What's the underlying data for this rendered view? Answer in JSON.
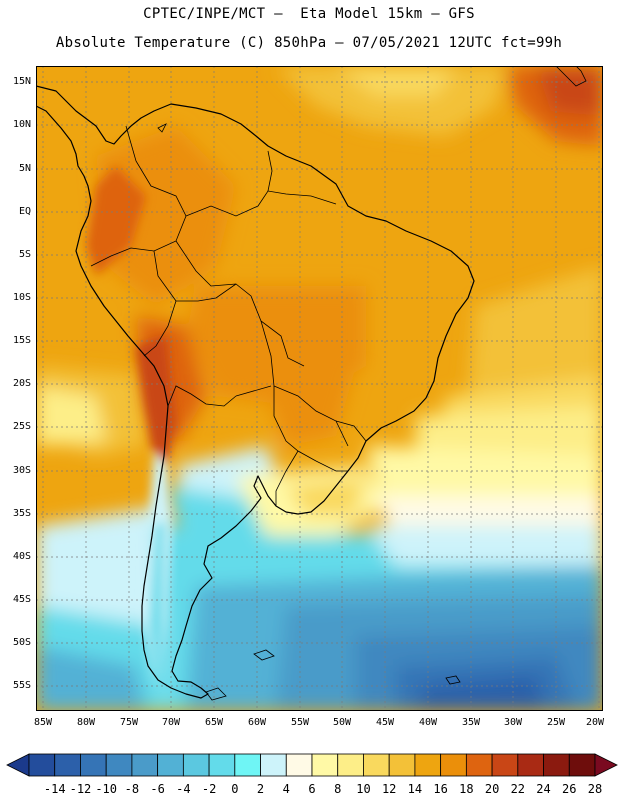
{
  "title_line1": "CPTEC/INPE/MCT —  Eta Model 15km — GFS",
  "title_line2": "Absolute Temperature (C) 850hPa — 07/05/2021 12UTC fct=99h",
  "map": {
    "lat_labels": [
      "15N",
      "10N",
      "5N",
      "EQ",
      "5S",
      "10S",
      "15S",
      "20S",
      "25S",
      "30S",
      "35S",
      "40S",
      "45S",
      "50S",
      "55S"
    ],
    "lon_labels": [
      "85W",
      "80W",
      "75W",
      "70W",
      "65W",
      "60W",
      "55W",
      "50W",
      "45W",
      "40W",
      "35W",
      "30W",
      "25W",
      "20W"
    ],
    "lat_range": [
      -58,
      16.5
    ],
    "lon_range": [
      -86,
      -19.7
    ],
    "grid": true
  },
  "colorbar": {
    "labels": [
      "-14",
      "-12",
      "-10",
      "-8",
      "-6",
      "-4",
      "-2",
      "0",
      "2",
      "4",
      "6",
      "8",
      "10",
      "12",
      "14",
      "16",
      "18",
      "20",
      "22",
      "24",
      "26",
      "28"
    ],
    "colors": [
      "#1b3a8c",
      "#234d9c",
      "#2c60aa",
      "#3574b6",
      "#3f88c0",
      "#4a9bc9",
      "#52b1d5",
      "#5bc8e0",
      "#63dbea",
      "#6ff5f5",
      "#cdf3fa",
      "#fffae6",
      "#fff9a6",
      "#fdee88",
      "#f9d95e",
      "#f3c138",
      "#eea510",
      "#eb8f0a",
      "#de6410",
      "#c94616",
      "#a92a14",
      "#8b1a0f",
      "#6e0d0c",
      "#7a0a20"
    ]
  }
}
